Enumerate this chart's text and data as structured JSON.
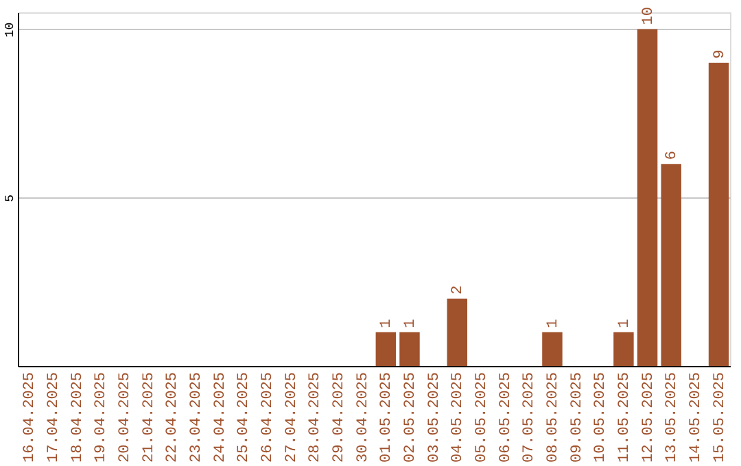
{
  "chart_data": {
    "type": "bar",
    "categories": [
      "16.04.2025",
      "17.04.2025",
      "18.04.2025",
      "19.04.2025",
      "20.04.2025",
      "21.04.2025",
      "22.04.2025",
      "23.04.2025",
      "24.04.2025",
      "25.04.2025",
      "26.04.2025",
      "27.04.2025",
      "28.04.2025",
      "29.04.2025",
      "30.04.2025",
      "01.05.2025",
      "02.05.2025",
      "03.05.2025",
      "04.05.2025",
      "05.05.2025",
      "06.05.2025",
      "07.05.2025",
      "08.05.2025",
      "09.05.2025",
      "10.05.2025",
      "11.05.2025",
      "12.05.2025",
      "13.05.2025",
      "14.05.2025",
      "15.05.2025"
    ],
    "values": [
      0,
      0,
      0,
      0,
      0,
      0,
      0,
      0,
      0,
      0,
      0,
      0,
      0,
      0,
      0,
      1,
      1,
      0,
      2,
      0,
      0,
      0,
      1,
      0,
      0,
      1,
      10,
      6,
      0,
      9
    ],
    "value_labels": [
      null,
      null,
      null,
      null,
      null,
      null,
      null,
      null,
      null,
      null,
      null,
      null,
      null,
      null,
      null,
      "1",
      "1",
      null,
      "2",
      null,
      null,
      null,
      "1",
      null,
      null,
      "1",
      "10",
      "6",
      null,
      "9"
    ],
    "color": "#a0522d",
    "ylim": [
      0,
      10.5
    ],
    "yticks": [
      5,
      10
    ],
    "grid": "y"
  }
}
